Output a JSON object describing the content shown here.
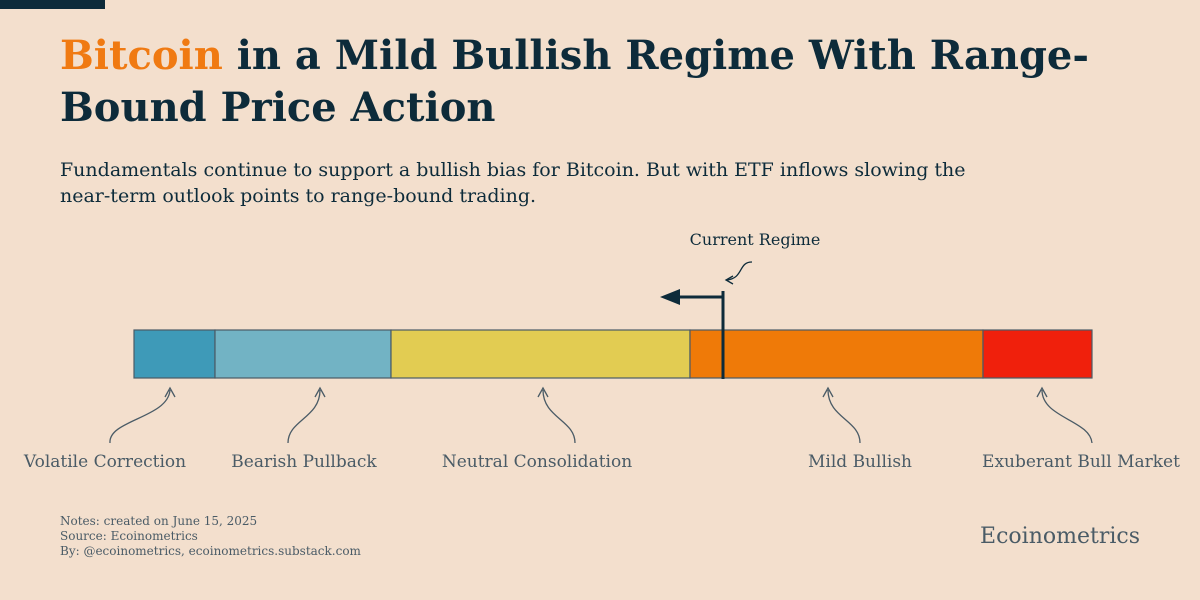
{
  "title": {
    "highlight": "Bitcoin",
    "rest": " in a Mild Bullish Regime With Range-Bound Price Action"
  },
  "subtitle": "Fundamentals continue to support a bullish bias for Bitcoin. But with ETF inflows slowing the near-term outlook points to range-bound trading.",
  "regimes": [
    {
      "label": "Volatile Correction",
      "color": "#3e9ab8"
    },
    {
      "label": "Bearish Pullback",
      "color": "#72b3c4"
    },
    {
      "label": "Neutral Consolidation",
      "color": "#e2cc52"
    },
    {
      "label": "Mild Bullish",
      "color": "#ef7a08"
    },
    {
      "label": "Exuberant Bull Market",
      "color": "#f0200c"
    }
  ],
  "current_regime": {
    "label": "Current Regime",
    "regime": "Mild Bullish",
    "direction": "left"
  },
  "notes": {
    "line1": "Notes: created on June 15, 2025",
    "line2": "Source: Ecoinometrics",
    "line3": "By: @ecoinometrics, ecoinometrics.substack.com"
  },
  "brand": "Ecoinometrics",
  "colors": {
    "background": "#f3dfcd",
    "title": "#0d2b3a",
    "highlight": "#f07a12",
    "muted": "#4a5b66"
  }
}
